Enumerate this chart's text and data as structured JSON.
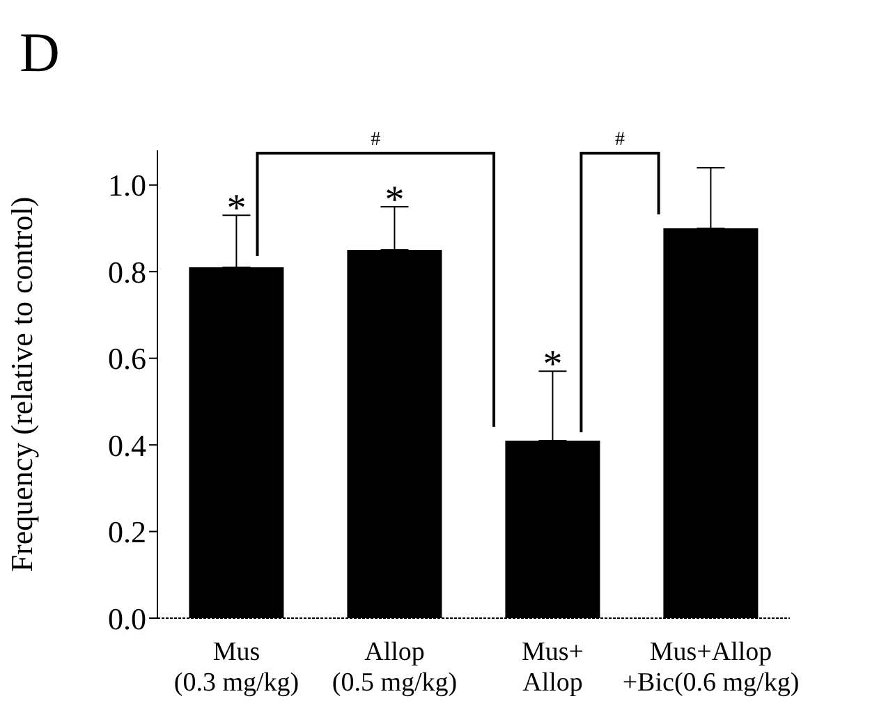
{
  "chart_data": {
    "type": "bar",
    "title": "D",
    "ylabel": "Frequency (relative to control)",
    "categories": [
      "Mus\n(0.3 mg/kg)",
      "Allop\n(0.5 mg/kg)",
      "Mus+\nAllop",
      "Mus+Allop\n+Bic(0.6 mg/kg)"
    ],
    "values": [
      0.81,
      0.85,
      0.41,
      0.9
    ],
    "color": "#000000",
    "errors": [
      [
        0.81,
        0.93
      ],
      [
        0.85,
        0.95
      ],
      [
        0.41,
        0.57
      ],
      [
        0.9,
        1.04
      ]
    ],
    "ylim": [
      0,
      1.08
    ],
    "yticks": [
      {
        "value": 0,
        "label": "0.0"
      },
      {
        "value": 0.2,
        "label": "0.2"
      },
      {
        "value": 0.4,
        "label": "0.4"
      },
      {
        "value": 0.6,
        "label": "0.6"
      },
      {
        "value": 0.8,
        "label": "0.8"
      },
      {
        "value": 1,
        "label": "1.0"
      }
    ],
    "annotations": [
      "*",
      "*",
      "*",
      "#",
      "#"
    ]
  }
}
